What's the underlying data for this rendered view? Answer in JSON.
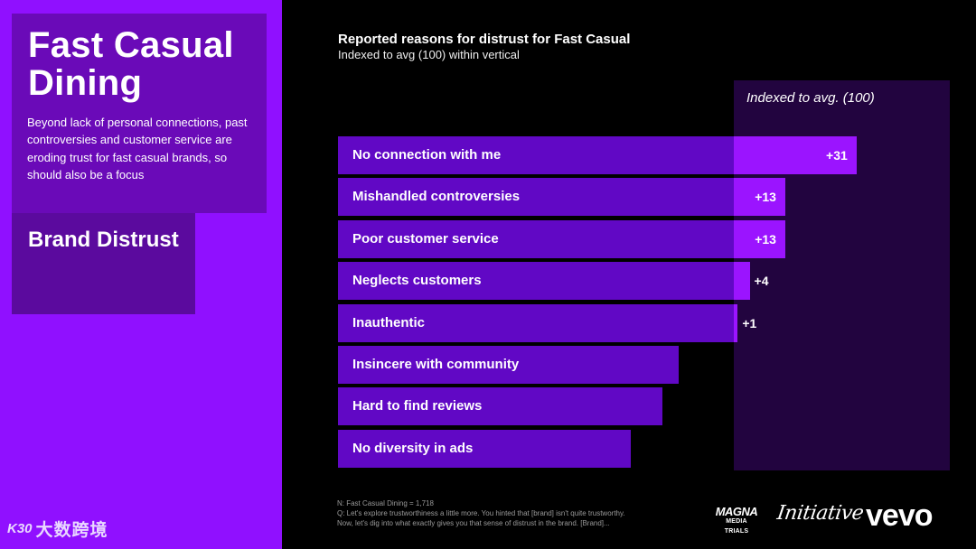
{
  "colors": {
    "left_bg": "#9010ff",
    "title_card": "#6a0ab8",
    "section_card": "#5b0a9e",
    "bar": "#6108c5",
    "bar_excess": "#9b14ff",
    "index_panel": "#22043f"
  },
  "left": {
    "title": "Fast Casual Dining",
    "description": "Beyond lack of personal connections, past controversies and customer service are eroding trust for fast casual brands, so should also be a focus",
    "section": "Brand Distrust"
  },
  "chart_data": {
    "type": "bar",
    "orientation": "horizontal",
    "title": "Reported reasons for distrust for Fast Casual",
    "subtitle": "Indexed to avg (100) within vertical",
    "index_label": "Indexed to avg. (100)",
    "baseline": 100,
    "categories": [
      "No connection with me",
      "Mishandled controversies",
      "Poor customer service",
      "Neglects customers",
      "Inauthentic",
      "Insincere with community",
      "Hard to find reviews",
      "No diversity in ads"
    ],
    "values": [
      131,
      113,
      113,
      104,
      101,
      86,
      82,
      74
    ],
    "value_labels": [
      "+31",
      "+13",
      "+13",
      "+4",
      "+1",
      "",
      "",
      ""
    ]
  },
  "footnote": {
    "line1": "N: Fast Casual Dining = 1,718",
    "line2": "Q: Let's explore trustworthiness a little more. You hinted that [brand] isn't quite trustworthy.",
    "line3": "Now, let's dig into what exactly gives you that sense of distrust in the brand. [Brand]..."
  },
  "logos": {
    "magna_line1": "MAGNA",
    "magna_line2": "MEDIA TRIALS",
    "initiative": "Initiative",
    "vevo": "vevo"
  },
  "watermark": {
    "logo": "K30",
    "text": "大数跨境"
  }
}
